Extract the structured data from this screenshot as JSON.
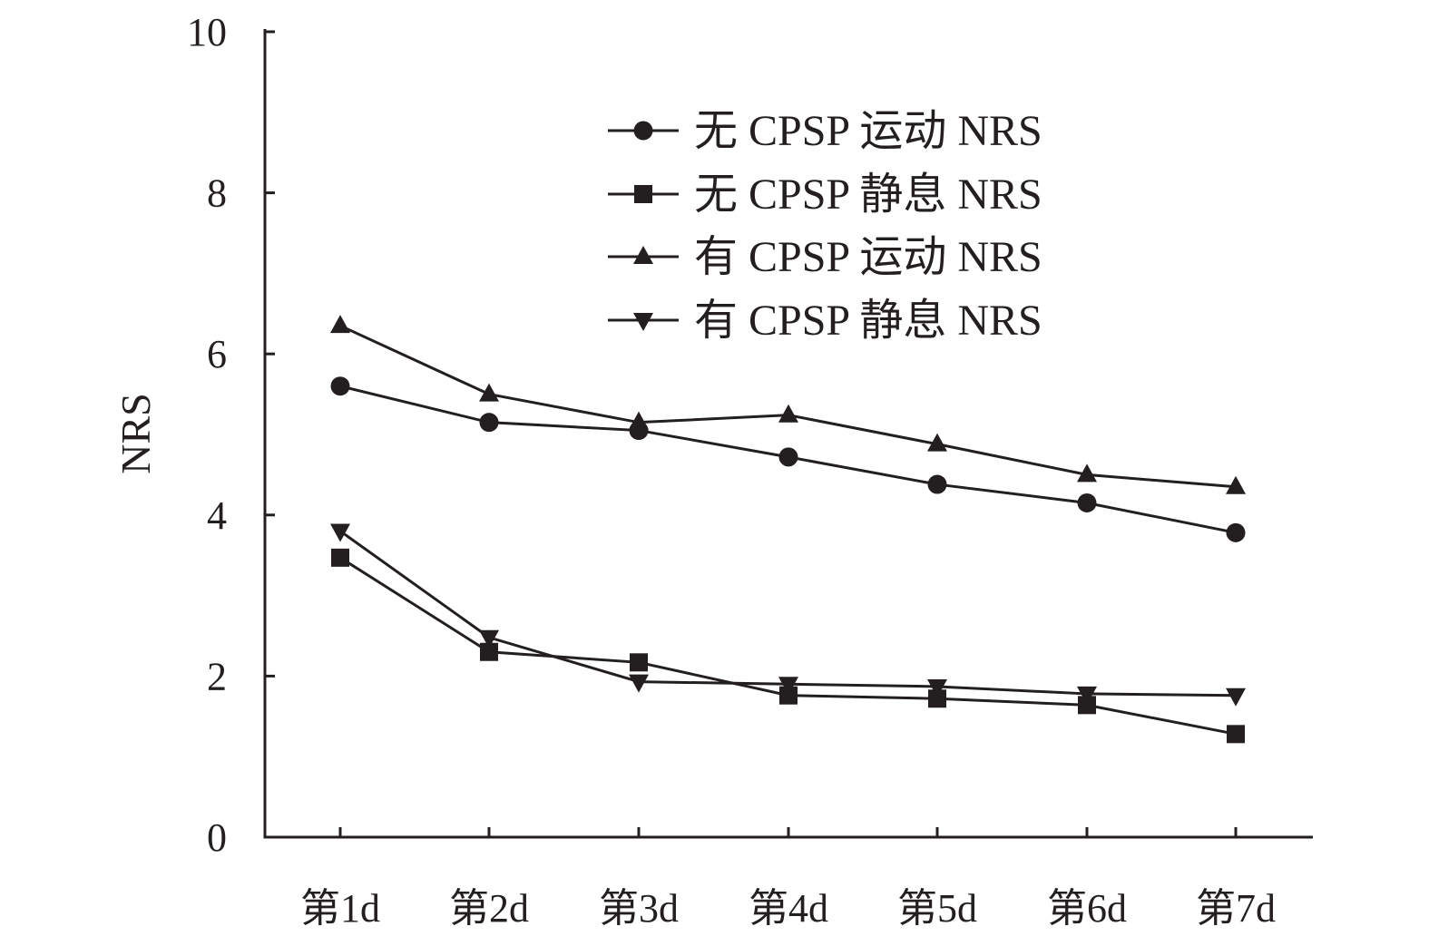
{
  "chart_data": {
    "type": "line",
    "ylabel": "NRS",
    "xlabel": "",
    "ylim": [
      0,
      10
    ],
    "yticks": [
      "0",
      "2",
      "4",
      "6",
      "8",
      "10"
    ],
    "categories": [
      "第1d",
      "第2d",
      "第3d",
      "第4d",
      "第5d",
      "第6d",
      "第7d"
    ],
    "legend_position": "top-right",
    "series": [
      {
        "name": "无 CPSP 运动 NRS",
        "marker": "circle",
        "values": [
          5.6,
          5.15,
          5.05,
          4.72,
          4.38,
          4.15,
          3.78
        ]
      },
      {
        "name": "无 CPSP 静息 NRS",
        "marker": "square",
        "values": [
          3.47,
          2.3,
          2.17,
          1.76,
          1.72,
          1.64,
          1.28
        ]
      },
      {
        "name": "有 CPSP 运动 NRS",
        "marker": "triangle-up",
        "values": [
          6.35,
          5.5,
          5.15,
          5.24,
          4.88,
          4.5,
          4.35
        ]
      },
      {
        "name": "有 CPSP 静息 NRS",
        "marker": "triangle-down",
        "values": [
          3.8,
          2.48,
          1.93,
          1.9,
          1.87,
          1.78,
          1.76
        ]
      }
    ],
    "colors": {
      "line": "#231f20",
      "marker": "#231f20"
    }
  }
}
